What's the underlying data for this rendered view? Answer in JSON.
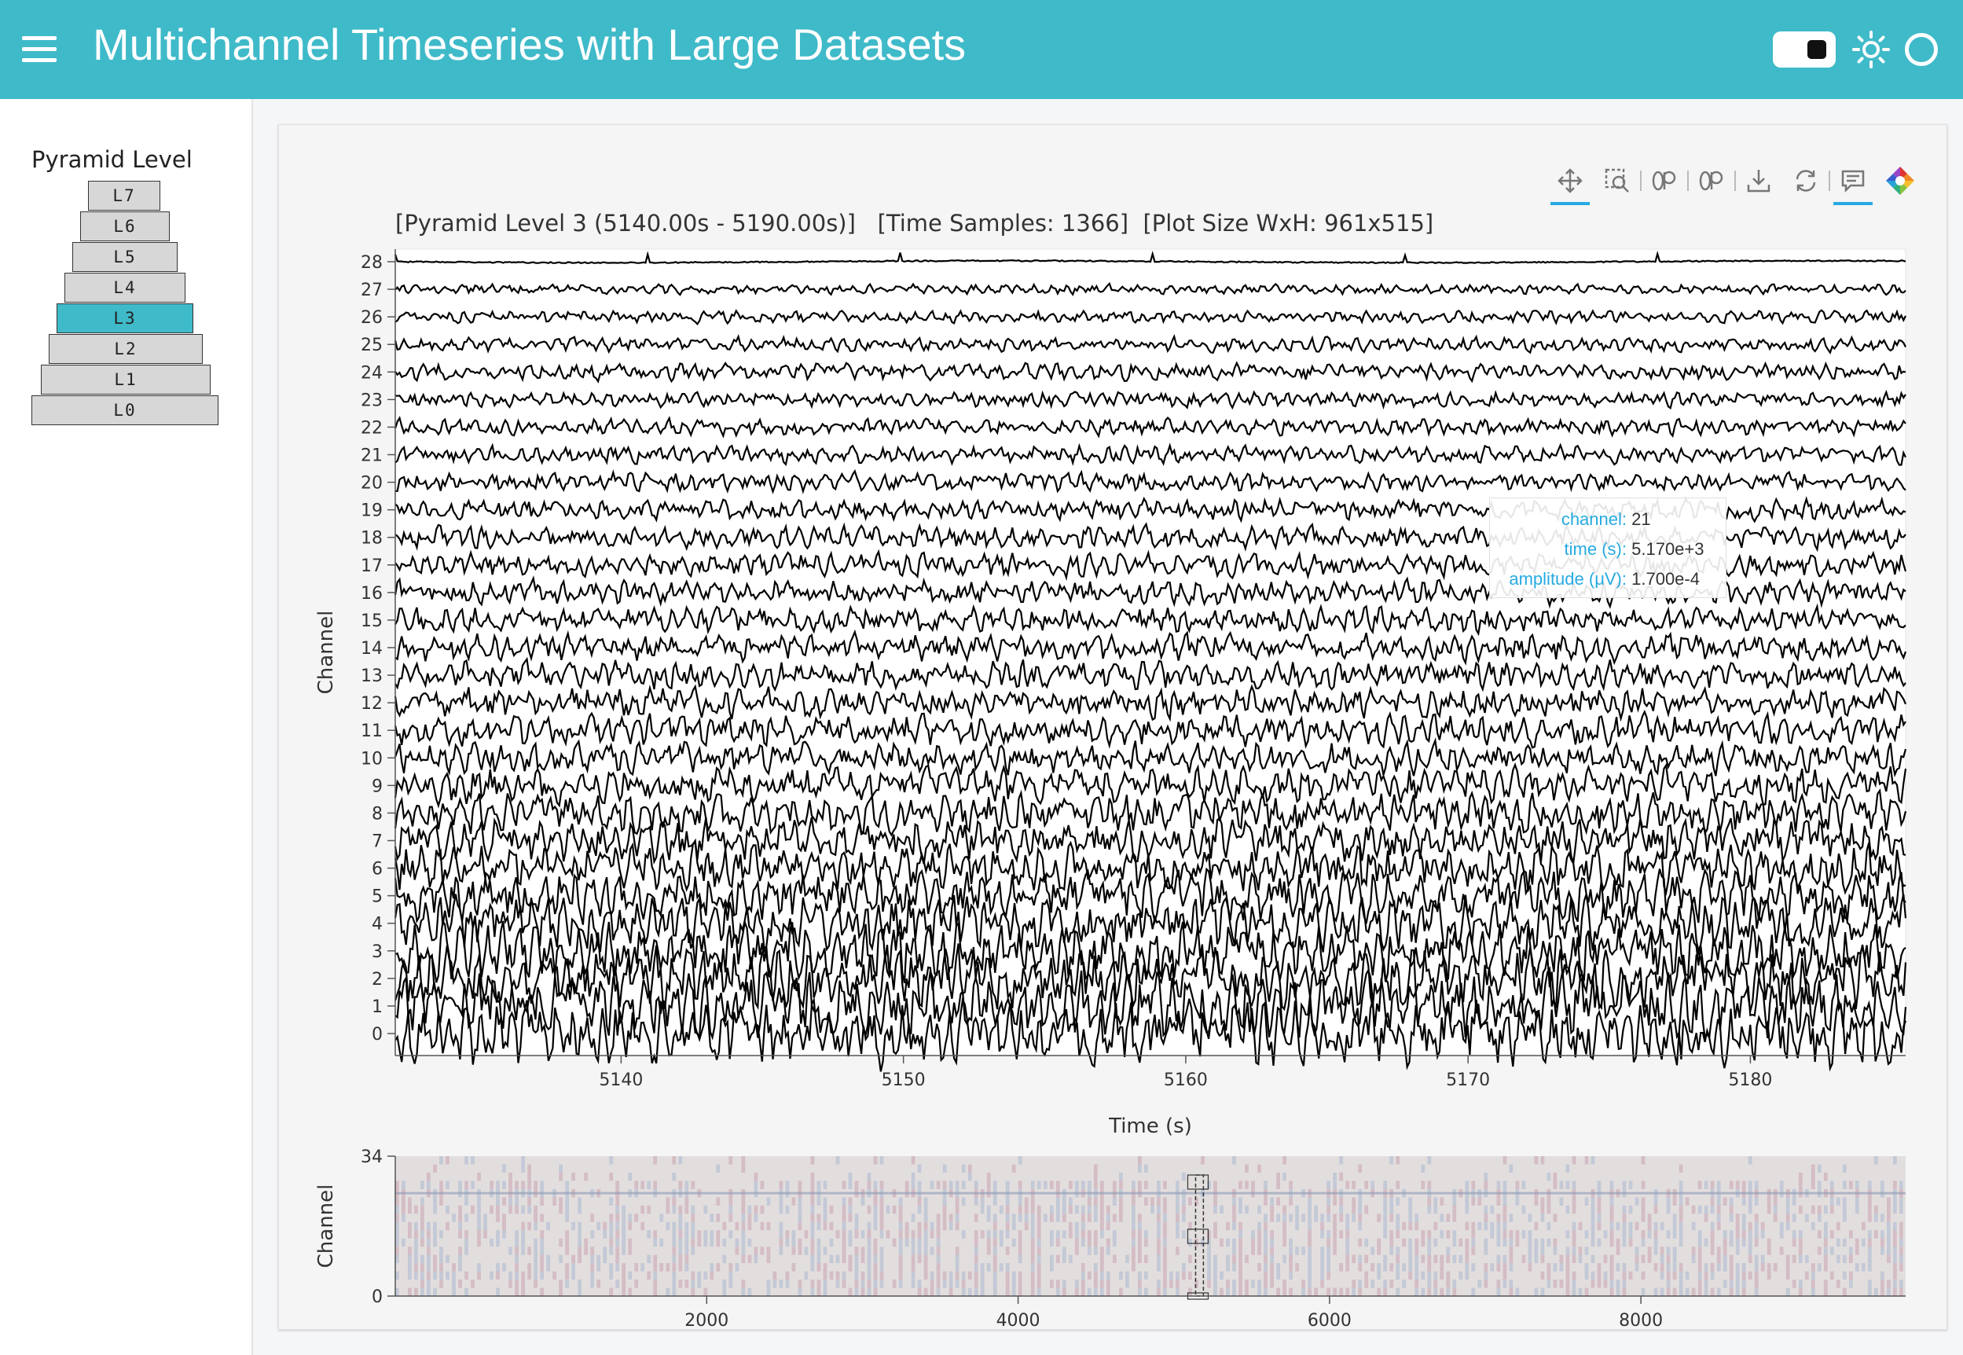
{
  "app": {
    "title": "Multichannel Timeseries with Large Datasets"
  },
  "sidebar": {
    "title": "Pyramid Level",
    "levels": [
      "L7",
      "L6",
      "L5",
      "L4",
      "L3",
      "L2",
      "L1",
      "L0"
    ],
    "active_level": "L3"
  },
  "toolbar": {
    "tools": [
      "pan-icon",
      "box-zoom-icon",
      "zoom-in-icon",
      "zoom-out-icon",
      "save-icon",
      "reset-icon",
      "hover-icon",
      "bokeh-logo-icon"
    ]
  },
  "plot": {
    "title": "[Pyramid Level 3 (5140.00s - 5190.00s)]   [Time Samples: 1366]  [Plot Size WxH: 961x515]",
    "tooltip": {
      "labels": [
        "channel:",
        "time (s):",
        "amplitude (μV):"
      ],
      "values": [
        "21",
        "5.170e+3",
        "1.700e-4"
      ]
    }
  },
  "chart_data": [
    {
      "type": "line",
      "title": "[Pyramid Level 3 (5140.00s - 5190.00s)]   [Time Samples: 1366]  [Plot Size WxH: 961x515]",
      "xlabel": "Time (s)",
      "ylabel": "Channel",
      "xlim": [
        5132,
        5185.5
      ],
      "ylim": [
        0,
        28
      ],
      "x_ticks": [
        5140,
        5150,
        5160,
        5170,
        5180
      ],
      "y_ticks": [
        0,
        1,
        2,
        3,
        4,
        5,
        6,
        7,
        8,
        9,
        10,
        11,
        12,
        13,
        14,
        15,
        16,
        17,
        18,
        19,
        20,
        21,
        22,
        23,
        24,
        25,
        26,
        27,
        28
      ],
      "series_count": 29,
      "line_color": "#000000",
      "grid": false
    },
    {
      "type": "heatmap",
      "xlabel": "",
      "ylabel": "Channel",
      "xlim": [
        0,
        9700
      ],
      "ylim": [
        0,
        34
      ],
      "x_ticks": [
        2000,
        4000,
        6000,
        8000
      ],
      "y_ticks": [
        0,
        34
      ],
      "colors": [
        "#c9a3b1",
        "#a9b8cf",
        "#e3dede"
      ],
      "range_selector": [
        5140,
        5190
      ]
    }
  ]
}
